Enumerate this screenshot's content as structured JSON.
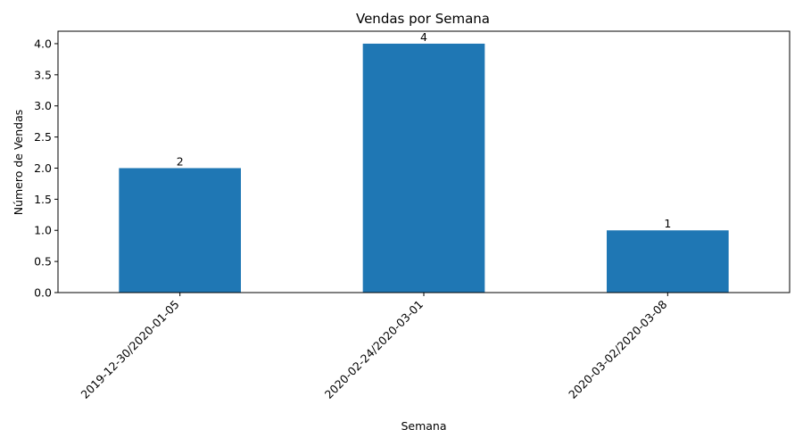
{
  "chart_data": {
    "type": "bar",
    "title": "Vendas por Semana",
    "xlabel": "Semana",
    "ylabel": "Número de Vendas",
    "categories": [
      "2019-12-30/2020-01-05",
      "2020-02-24/2020-03-01",
      "2020-03-02/2020-03-08"
    ],
    "values": [
      2,
      4,
      1
    ],
    "data_labels": [
      "2",
      "4",
      "1"
    ],
    "ylim": [
      0,
      4.2
    ],
    "yticks": [
      0.0,
      0.5,
      1.0,
      1.5,
      2.0,
      2.5,
      3.0,
      3.5,
      4.0
    ],
    "ytick_labels": [
      "0.0",
      "0.5",
      "1.0",
      "1.5",
      "2.0",
      "2.5",
      "3.0",
      "3.5",
      "4.0"
    ],
    "xtick_rotation_deg": 45,
    "grid": false,
    "legend": "none",
    "bar_color": "#1f77b4"
  }
}
